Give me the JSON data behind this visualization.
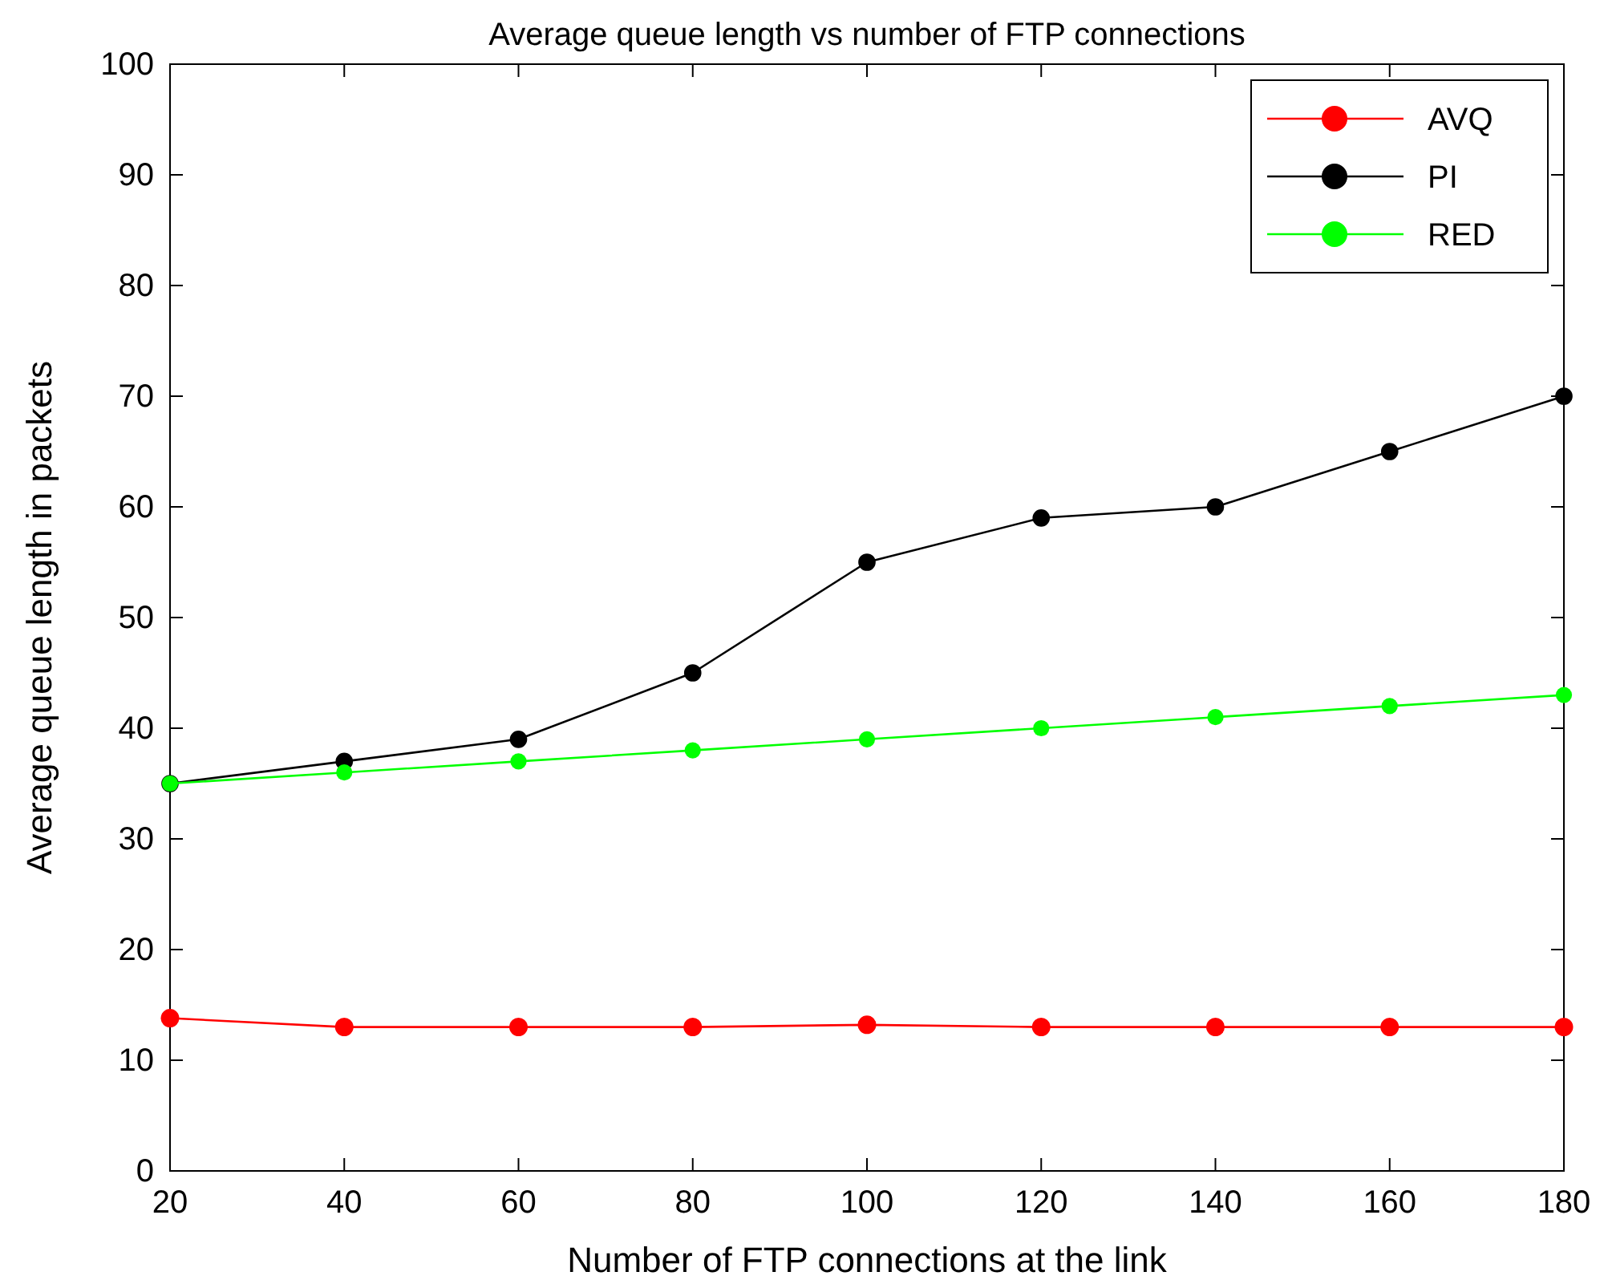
{
  "chart_data": {
    "type": "line",
    "title": "Average queue length vs number of FTP connections",
    "xlabel": "Number of FTP connections at the link",
    "ylabel": "Average queue length in packets",
    "x": [
      20,
      40,
      60,
      80,
      100,
      120,
      140,
      160,
      180
    ],
    "series": [
      {
        "name": "AVQ",
        "color": "#ff0000",
        "values": [
          13.8,
          13,
          13,
          13,
          13.2,
          13,
          13,
          13,
          13
        ]
      },
      {
        "name": "PI",
        "color": "#000000",
        "values": [
          35,
          37,
          39,
          45,
          55,
          59,
          60,
          65,
          70
        ]
      },
      {
        "name": "RED",
        "color": "#00ff00",
        "values": [
          35,
          36,
          37,
          38,
          39,
          40,
          41,
          42,
          43
        ]
      }
    ],
    "xlim": [
      20,
      180
    ],
    "xticks": [
      20,
      40,
      60,
      80,
      100,
      120,
      140,
      160,
      180
    ],
    "ylim": [
      0,
      100
    ],
    "yticks": [
      0,
      10,
      20,
      30,
      40,
      50,
      60,
      70,
      80,
      90,
      100
    ],
    "grid": false,
    "legend": "top right",
    "marker": "circle",
    "line_style": "solid"
  }
}
